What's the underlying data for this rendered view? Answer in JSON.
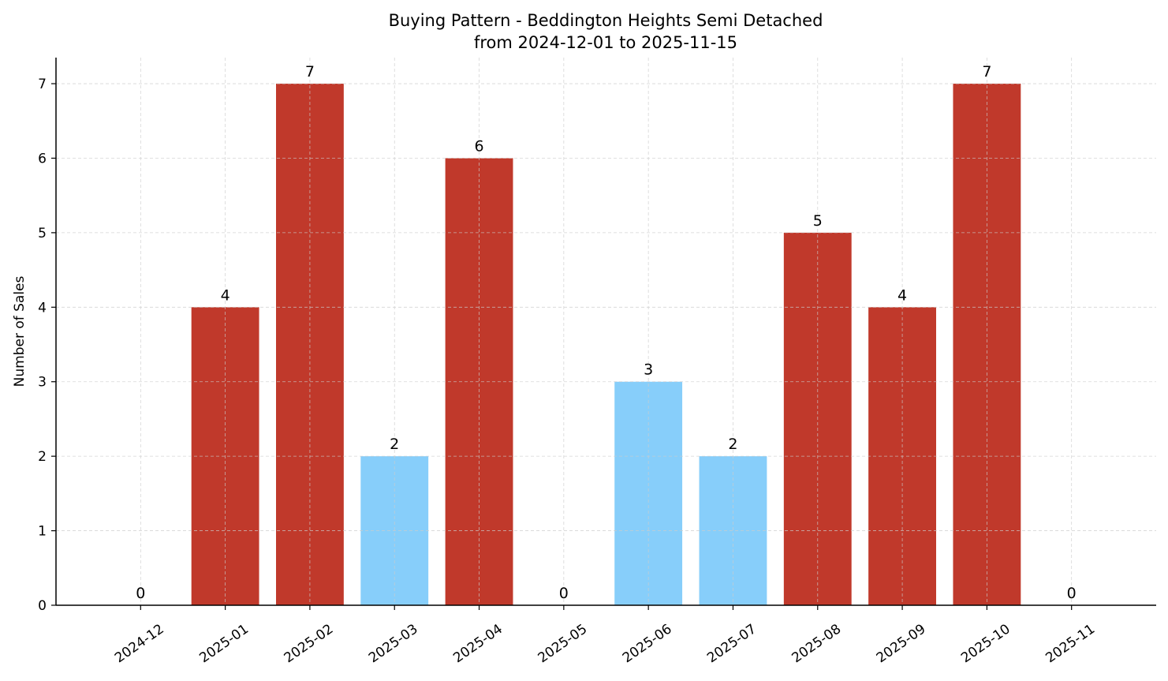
{
  "chart_data": {
    "type": "bar",
    "title": "Buying Pattern - Beddington Heights Semi Detached",
    "subtitle": "from 2024-12-01 to 2025-11-15",
    "xlabel": "",
    "ylabel": "Number of Sales",
    "categories": [
      "2024-12",
      "2025-01",
      "2025-02",
      "2025-03",
      "2025-04",
      "2025-05",
      "2025-06",
      "2025-07",
      "2025-08",
      "2025-09",
      "2025-10",
      "2025-11"
    ],
    "values": [
      0,
      4,
      7,
      2,
      6,
      0,
      3,
      2,
      5,
      4,
      7,
      0
    ],
    "bar_colors": [
      "#c0392b",
      "#c0392b",
      "#c0392b",
      "#87cefa",
      "#c0392b",
      "#c0392b",
      "#87cefa",
      "#87cefa",
      "#c0392b",
      "#c0392b",
      "#c0392b",
      "#c0392b"
    ],
    "data_labels": [
      "0",
      "4",
      "7",
      "2",
      "6",
      "0",
      "3",
      "2",
      "5",
      "4",
      "7",
      "0"
    ],
    "ylim": [
      0,
      7.35
    ],
    "yticks": [
      "0",
      "1",
      "2",
      "3",
      "4",
      "5",
      "6",
      "7"
    ],
    "grid": true,
    "grid_style": "dashed",
    "legend": "none"
  }
}
